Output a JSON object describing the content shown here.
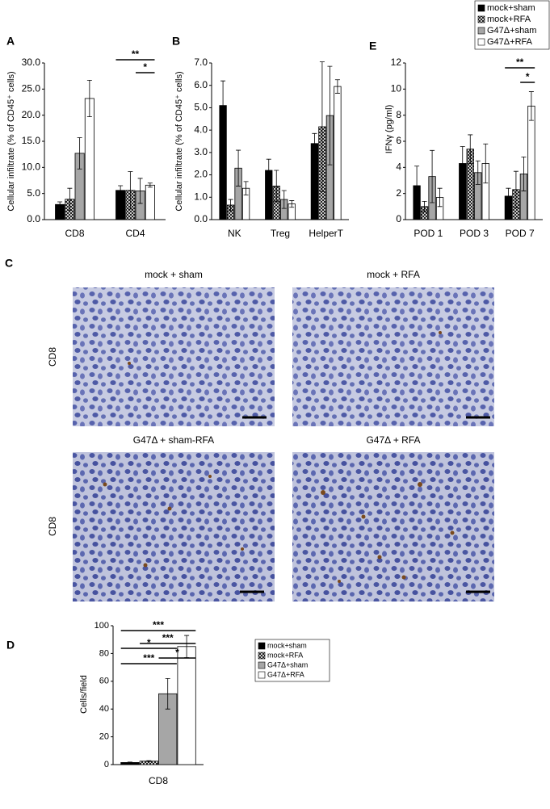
{
  "chart_data": [
    {
      "type": "bar",
      "panel": "A",
      "y_label": "Cellular infiltrate (% of CD45⁺ cells)",
      "categories": [
        "CD8",
        "CD4"
      ],
      "series": [
        {
          "name": "mock+sham",
          "color": "#000000",
          "values": [
            2.9,
            5.6
          ],
          "errors": [
            0.5,
            0.9
          ]
        },
        {
          "name": "mock+RFA",
          "color": "#ffffff",
          "pattern": "crosshatch",
          "values": [
            3.9,
            5.6
          ],
          "errors": [
            2.1,
            3.6
          ]
        },
        {
          "name": "G47Δ+sham",
          "color": "#a6a6a6",
          "values": [
            12.7,
            5.5
          ],
          "errors": [
            3.0,
            2.4
          ]
        },
        {
          "name": "G47Δ+RFA",
          "color": "#ffffff",
          "values": [
            23.2,
            6.6
          ],
          "errors": [
            3.5,
            0.4
          ]
        }
      ],
      "ylim": [
        0,
        30
      ],
      "yticks": [
        {
          "value": 0,
          "label": "0.0"
        },
        {
          "value": 5,
          "label": "5.0"
        },
        {
          "value": 10,
          "label": "10.0"
        },
        {
          "value": 15,
          "label": "15.0"
        },
        {
          "value": 20,
          "label": "20.0"
        },
        {
          "value": 25,
          "label": "25.0"
        },
        {
          "value": 30,
          "label": "30.0"
        }
      ],
      "annotations": [
        "**",
        "*"
      ]
    },
    {
      "type": "bar",
      "panel": "B",
      "y_label": "Cellular infiltrate (% of CD45⁺ cells)",
      "categories": [
        "NK",
        "Treg",
        "HelperT"
      ],
      "series": [
        {
          "name": "mock+sham",
          "color": "#000000",
          "values": [
            5.1,
            2.2,
            3.4
          ],
          "errors": [
            1.1,
            0.5,
            0.45
          ]
        },
        {
          "name": "mock+RFA",
          "color": "#ffffff",
          "pattern": "crosshatch",
          "values": [
            0.65,
            1.5,
            4.15
          ],
          "errors": [
            0.25,
            0.7,
            2.9
          ]
        },
        {
          "name": "G47Δ+sham",
          "color": "#a6a6a6",
          "values": [
            2.3,
            0.9,
            4.65
          ],
          "errors": [
            0.8,
            0.4,
            2.2
          ]
        },
        {
          "name": "G47Δ+RFA",
          "color": "#ffffff",
          "values": [
            1.4,
            0.7,
            5.95
          ],
          "errors": [
            0.3,
            0.15,
            0.3
          ]
        }
      ],
      "ylim": [
        0,
        7
      ],
      "yticks": [
        {
          "value": 0,
          "label": "0.0"
        },
        {
          "value": 1,
          "label": "1.0"
        },
        {
          "value": 2,
          "label": "2.0"
        },
        {
          "value": 3,
          "label": "3.0"
        },
        {
          "value": 4,
          "label": "4.0"
        },
        {
          "value": 5,
          "label": "5.0"
        },
        {
          "value": 6,
          "label": "6.0"
        },
        {
          "value": 7,
          "label": "7.0"
        }
      ],
      "annotations": []
    },
    {
      "type": "bar",
      "panel": "E",
      "y_label": "IFNγ (pg/ml)",
      "categories": [
        "POD 1",
        "POD 3",
        "POD 7"
      ],
      "series": [
        {
          "name": "mock+sham",
          "color": "#000000",
          "values": [
            2.6,
            4.3,
            1.8
          ],
          "errors": [
            1.5,
            1.3,
            0.6
          ]
        },
        {
          "name": "mock+RFA",
          "color": "#ffffff",
          "pattern": "crosshatch",
          "values": [
            1.0,
            5.4,
            2.3
          ],
          "errors": [
            0.4,
            1.1,
            1.4
          ]
        },
        {
          "name": "G47Δ+sham",
          "color": "#a6a6a6",
          "values": [
            3.3,
            3.6,
            3.5
          ],
          "errors": [
            2.0,
            0.9,
            1.3
          ]
        },
        {
          "name": "G47Δ+RFA",
          "color": "#ffffff",
          "values": [
            1.7,
            4.3,
            8.7
          ],
          "errors": [
            0.7,
            1.5,
            1.1
          ]
        }
      ],
      "ylim": [
        0,
        12
      ],
      "yticks": [
        0,
        2,
        4,
        6,
        8,
        10,
        12
      ],
      "annotations": [
        "**",
        "*"
      ],
      "legend": "top-right"
    },
    {
      "type": "bar",
      "panel": "D",
      "y_label": "Cells/field",
      "categories": [
        "CD8"
      ],
      "series": [
        {
          "name": "mock+sham",
          "color": "#000000",
          "values": [
            1.5
          ],
          "errors": [
            0.3
          ]
        },
        {
          "name": "mock+RFA",
          "color": "#ffffff",
          "pattern": "crosshatch",
          "values": [
            2.5
          ],
          "errors": [
            0.3
          ]
        },
        {
          "name": "G47Δ+sham",
          "color": "#a6a6a6",
          "values": [
            51
          ],
          "errors": [
            11
          ]
        },
        {
          "name": "G47Δ+RFA",
          "color": "#ffffff",
          "values": [
            85
          ],
          "errors": [
            8
          ]
        }
      ],
      "ylim": [
        0,
        100
      ],
      "yticks": [
        0,
        20,
        40,
        60,
        80,
        100
      ],
      "annotations": [
        "***",
        "***",
        "*",
        "*",
        "***"
      ],
      "legend": "right"
    }
  ],
  "figure_c": {
    "panel": "C",
    "titles": [
      "mock + sham",
      "mock + RFA",
      "G47Δ + sham-RFA",
      "G47Δ + RFA"
    ],
    "row_label": "CD8"
  }
}
